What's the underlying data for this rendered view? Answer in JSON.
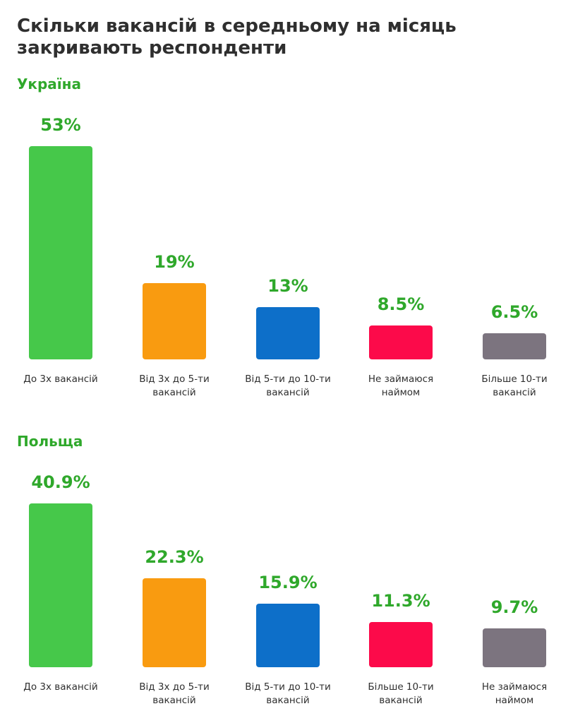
{
  "title": "Скільки вакансій в середньому на місяць закривають респонденти",
  "colors": {
    "green": "#46c84a",
    "orange": "#f99b10",
    "blue": "#0d6fc9",
    "red": "#fc0a4a",
    "gray": "#7c747f",
    "label_green": "#2fa82b",
    "text": "#2f2f2f"
  },
  "chart_data": [
    {
      "type": "bar",
      "title": "Україна",
      "unit": "%",
      "categories": [
        [
          "До 3х вакансій"
        ],
        [
          "Від 3х до 5-ти",
          "вакансій"
        ],
        [
          "Від 5-ти до 10-ти",
          "вакансій"
        ],
        [
          "Не займаюся",
          "наймом"
        ],
        [
          "Більше 10-ти",
          "вакансій"
        ]
      ],
      "values": [
        53,
        19,
        13,
        8.5,
        6.5
      ],
      "value_labels": [
        "53%",
        "19%",
        "13%",
        "8.5%",
        "6.5%"
      ],
      "bar_colors": [
        "#46c84a",
        "#f99b10",
        "#0d6fc9",
        "#fc0a4a",
        "#7c747f"
      ],
      "ylim": [
        0,
        53
      ],
      "grid": false
    },
    {
      "type": "bar",
      "title": "Польща",
      "unit": "%",
      "categories": [
        [
          "До 3х вакансій"
        ],
        [
          "Від 3х до 5-ти",
          "вакансій"
        ],
        [
          "Від 5-ти до 10-ти",
          "вакансій"
        ],
        [
          "Більше 10-ти",
          "вакансій"
        ],
        [
          "Не займаюся",
          "наймом"
        ]
      ],
      "values": [
        40.9,
        22.3,
        15.9,
        11.3,
        9.7
      ],
      "value_labels": [
        "40.9%",
        "22.3%",
        "15.9%",
        "11.3%",
        "9.7%"
      ],
      "bar_colors": [
        "#46c84a",
        "#f99b10",
        "#0d6fc9",
        "#fc0a4a",
        "#7c747f"
      ],
      "ylim": [
        0,
        40.9
      ],
      "grid": false
    }
  ]
}
